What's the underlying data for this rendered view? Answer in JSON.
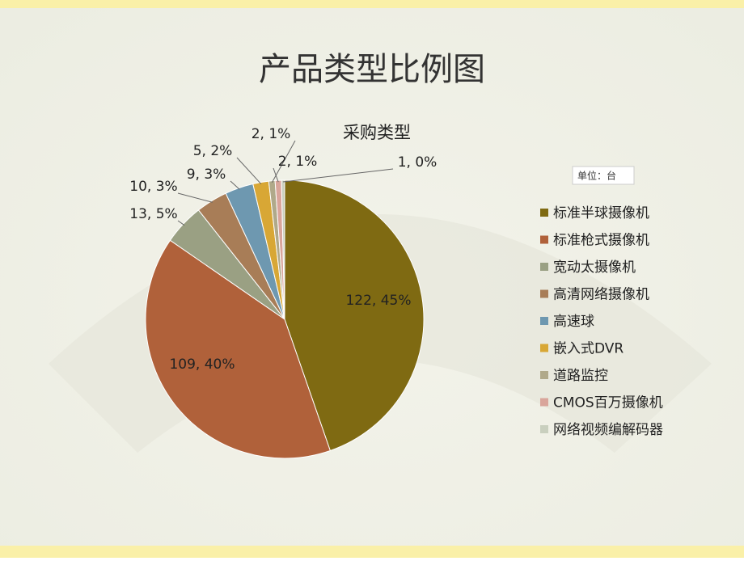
{
  "header": {
    "title": "产品类型比例图"
  },
  "chart_data": {
    "type": "pie",
    "title": "采购类型",
    "unit_note": "单位：台",
    "categories": [
      "标准半球摄像机",
      "标准枪式摄像机",
      "宽动太摄像机",
      "高清网络摄像机",
      "高速球",
      "嵌入式DVR",
      "道路监控",
      "CMOS百万摄像机",
      "网络视频编解码器"
    ],
    "values": [
      122,
      109,
      13,
      10,
      9,
      5,
      2,
      2,
      1
    ],
    "value_labels": [
      "122, 45%",
      "109, 40%",
      "13, 5%",
      "10, 3%",
      "9, 3%",
      "5, 2%",
      "2, 1%",
      "2, 1%",
      "1, 0%"
    ],
    "colors": [
      "#7f6a12",
      "#b0613a",
      "#9aa083",
      "#a87d57",
      "#6e98b0",
      "#d8a735",
      "#b0a98a",
      "#d9a59b",
      "#c9cfbe"
    ],
    "legend": "right"
  }
}
